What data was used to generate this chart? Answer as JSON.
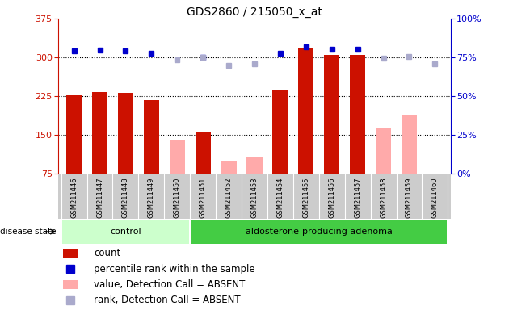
{
  "title": "GDS2860 / 215050_x_at",
  "samples": [
    "GSM211446",
    "GSM211447",
    "GSM211448",
    "GSM211449",
    "GSM211450",
    "GSM211451",
    "GSM211452",
    "GSM211453",
    "GSM211454",
    "GSM211455",
    "GSM211456",
    "GSM211457",
    "GSM211458",
    "GSM211459",
    "GSM211460"
  ],
  "count_values": [
    226,
    233,
    232,
    218,
    null,
    156,
    null,
    null,
    236,
    318,
    305,
    305,
    null,
    null,
    null
  ],
  "count_absent": [
    null,
    null,
    null,
    null,
    139,
    null,
    100,
    106,
    null,
    null,
    null,
    null,
    164,
    187,
    null
  ],
  "rank_present": [
    312,
    314,
    313,
    308,
    null,
    300,
    null,
    null,
    308,
    320,
    315,
    315,
    null,
    null,
    null
  ],
  "rank_absent": [
    null,
    null,
    null,
    null,
    295,
    300,
    284,
    287,
    null,
    null,
    null,
    null,
    299,
    302,
    287
  ],
  "groups": [
    "control",
    "control",
    "control",
    "control",
    "control",
    "aldosterone-producing adenoma",
    "aldosterone-producing adenoma",
    "aldosterone-producing adenoma",
    "aldosterone-producing adenoma",
    "aldosterone-producing adenoma",
    "aldosterone-producing adenoma",
    "aldosterone-producing adenoma",
    "aldosterone-producing adenoma",
    "aldosterone-producing adenoma",
    "aldosterone-producing adenoma"
  ],
  "ylim_left": [
    75,
    375
  ],
  "ylim_right": [
    0,
    100
  ],
  "yticks_left": [
    75,
    150,
    225,
    300,
    375
  ],
  "yticks_right": [
    0,
    25,
    50,
    75,
    100
  ],
  "hlines": [
    150,
    225,
    300
  ],
  "bar_color_present": "#cc1100",
  "bar_color_absent": "#ffaaaa",
  "marker_color_present": "#0000cc",
  "marker_color_absent": "#aaaacc",
  "group_colors": {
    "control": "#ccffcc",
    "aldosterone-producing adenoma": "#44cc44"
  },
  "left_axis_color": "#cc1100",
  "right_axis_color": "#0000cc",
  "col_bg": "#cccccc",
  "plot_bg": "#ffffff"
}
